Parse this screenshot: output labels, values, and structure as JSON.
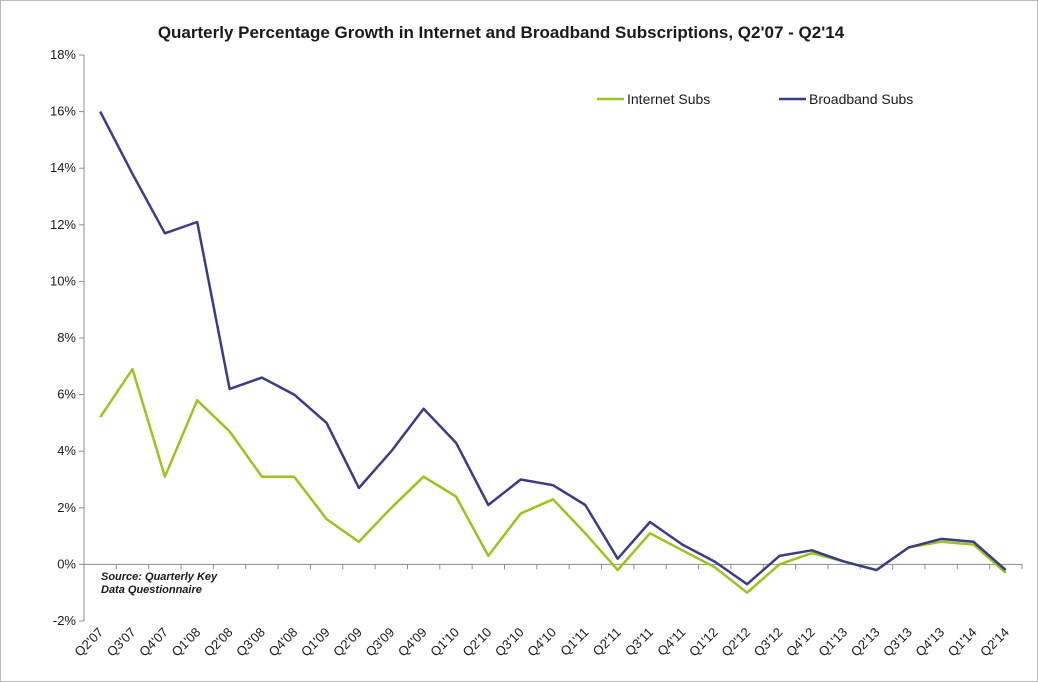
{
  "chart_data": {
    "type": "line",
    "title": "Quarterly Percentage Growth in Internet and Broadband Subscriptions, Q2'07 - Q2'14",
    "xlabel": "",
    "ylabel": "",
    "ylim": [
      -2,
      18
    ],
    "yticks": [
      -2,
      0,
      2,
      4,
      6,
      8,
      10,
      12,
      14,
      16,
      18
    ],
    "ytick_suffix": "%",
    "grid": false,
    "legend_position": "top-right",
    "categories": [
      "Q2'07",
      "Q3'07",
      "Q4'07",
      "Q1'08",
      "Q2'08",
      "Q3'08",
      "Q4'08",
      "Q1'09",
      "Q2'09",
      "Q3'09",
      "Q4'09",
      "Q1'10",
      "Q2'10",
      "Q3'10",
      "Q4'10",
      "Q1'11",
      "Q2'11",
      "Q3'11",
      "Q4'11",
      "Q1'12",
      "Q2'12",
      "Q3'12",
      "Q4'12",
      "Q1'13",
      "Q2'13",
      "Q3'13",
      "Q4'13",
      "Q1'14",
      "Q2'14"
    ],
    "series": [
      {
        "name": "Internet Subs",
        "color": "#9bc31c",
        "values": [
          5.2,
          6.9,
          3.1,
          5.8,
          4.7,
          3.1,
          3.1,
          1.6,
          0.8,
          2.0,
          3.1,
          2.4,
          0.3,
          1.8,
          2.3,
          1.1,
          -0.2,
          1.1,
          0.5,
          -0.1,
          -1.0,
          0.0,
          0.4,
          0.1,
          -0.2,
          0.6,
          0.8,
          0.7,
          -0.3
        ]
      },
      {
        "name": "Broadband Subs",
        "color": "#3b3b8c",
        "values": [
          16.0,
          13.8,
          11.7,
          12.1,
          6.2,
          6.6,
          6.0,
          5.0,
          2.7,
          4.0,
          5.5,
          4.3,
          2.1,
          3.0,
          2.8,
          2.1,
          0.2,
          1.5,
          0.7,
          0.1,
          -0.7,
          0.3,
          0.5,
          0.1,
          -0.2,
          0.6,
          0.9,
          0.8,
          -0.2
        ]
      }
    ],
    "annotations": [
      "Source: Quarterly Key",
      "Data Questionnaire"
    ]
  }
}
